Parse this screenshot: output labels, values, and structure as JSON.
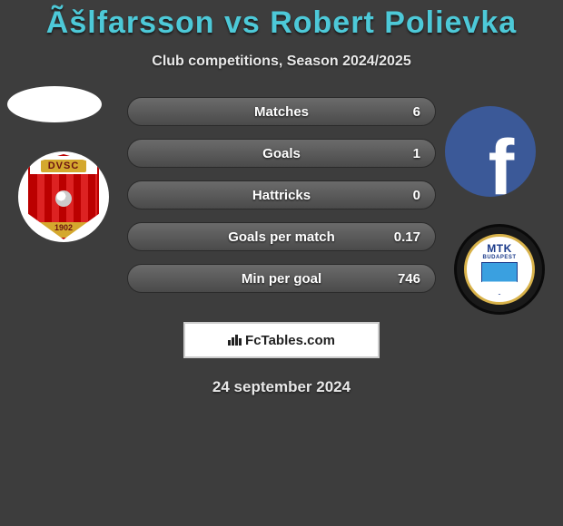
{
  "title": "Ãšlfarsson vs Robert Polievka",
  "subtitle": "Club competitions, Season 2024/2025",
  "date": "24 september 2024",
  "brand": "FcTables.com",
  "colors": {
    "background": "#3d3d3d",
    "title": "#4dc9d8",
    "subtitle": "#e8e8e8",
    "bar_bg_top": "#6b6b6b",
    "bar_bg_bottom": "#4a4a4a",
    "bar_text": "#ffffff",
    "facebook": "#3b5998"
  },
  "player_left": {
    "name": "Ãšlfarsson",
    "club": {
      "abbr": "DVSC",
      "year": "1902",
      "primary": "#c01818",
      "secondary": "#d4a82e"
    }
  },
  "player_right": {
    "name": "Robert Polievka",
    "club": {
      "abbr": "MTK",
      "city": "BUDAPEST",
      "ring": "#d8b24a",
      "primary": "#1a3a8a",
      "accent": "#3aa0e0"
    }
  },
  "stats": [
    {
      "label": "Matches",
      "value": "6"
    },
    {
      "label": "Goals",
      "value": "1"
    },
    {
      "label": "Hattricks",
      "value": "0"
    },
    {
      "label": "Goals per match",
      "value": "0.17"
    },
    {
      "label": "Min per goal",
      "value": "746"
    }
  ]
}
